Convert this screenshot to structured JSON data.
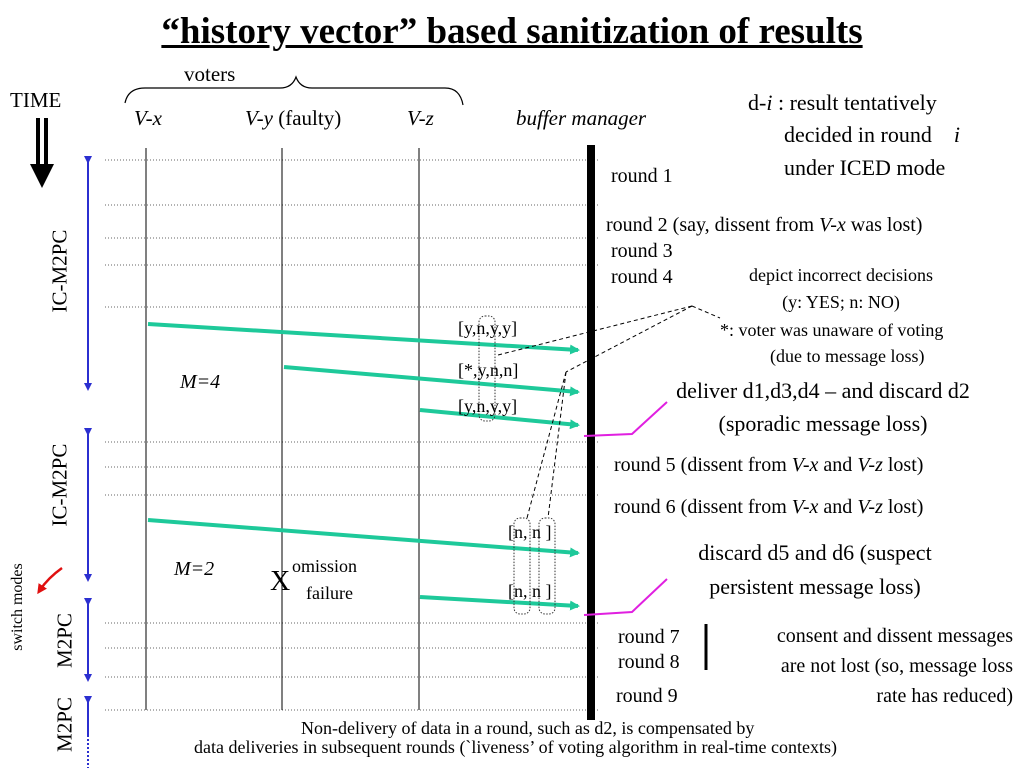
{
  "title": "“history vector”  based sanitization of results",
  "header": {
    "voters": "voters",
    "time": "TIME",
    "vx": "V-x",
    "vy": "V-y",
    "vy_note": "(faulty)",
    "vz": "V-z",
    "buffer_manager": "buffer manager"
  },
  "legend_di": {
    "line1_pre": "d-",
    "line1_i": "i",
    "line1_post": " : result tentatively",
    "line2_pre": "decided in round",
    "line2_i": "i",
    "line3": "under  ICED  mode"
  },
  "modes": {
    "ic_m2pc_1": "IC-M2PC",
    "ic_m2pc_2": "IC-M2PC",
    "switch_modes": "switch modes",
    "m2pc_1": "M2PC",
    "m2pc_2": "M2PC"
  },
  "rounds": {
    "r1": "round 1",
    "r2_pre": "round 2 (say, dissent from ",
    "r2_v": "V-x",
    "r2_post": " was lost)",
    "r3": "round 3",
    "r4": "round 4",
    "r5_pre": "round 5 (dissent from ",
    "r5_v1": "V-x",
    "r5_and": " and ",
    "r5_v2": "V-z",
    "r5_post": " lost)",
    "r6_pre": "round 6 (dissent from ",
    "r6_v1": "V-x",
    "r6_and": " and ",
    "r6_v2": "V-z",
    "r6_post": " lost)",
    "r7": "round 7",
    "r8": "round 8",
    "r9": "round 9"
  },
  "m_labels": {
    "m4": "M=4",
    "m2": "M=2"
  },
  "vectors": {
    "v1": "[y,n,y,y]",
    "v2": "[*,y,n,n]",
    "v3": "[y,n,y,y]",
    "v4": "[n, n ]",
    "v5": "[n, n ]"
  },
  "notes": {
    "depict": "depict  incorrect decisions",
    "yes_no": "(y: YES;  n: NO)",
    "star": "*:  voter was unaware of  voting",
    "star2": "(due to message loss)",
    "deliver1": "deliver d1,d3,d4 – and discard d2",
    "deliver2": "(sporadic message loss)",
    "discard1": "discard d5 and d6  (suspect",
    "discard2": "persistent  message loss)",
    "omission_x": "X",
    "omission1": "omission",
    "omission2": "failure",
    "consent1": "consent and dissent messages",
    "consent2": "are not lost  (so, message loss",
    "consent3": "rate has reduced)",
    "footer1": "Non-delivery of data in a round, such as d2, is compensated by",
    "footer2": "data deliveries in subsequent rounds (`liveness’ of voting algorithm in real-time contexts)"
  },
  "colors": {
    "arrow_green": "#1ec99a",
    "mode_blue": "#2b2fd0",
    "pointer_magenta": "#e020e0",
    "switch_red": "#e01010"
  }
}
